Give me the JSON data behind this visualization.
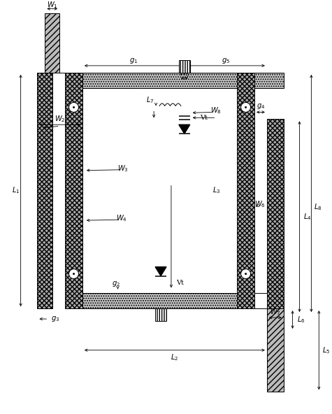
{
  "bg_color": "#ffffff",
  "fig_width": 4.75,
  "fig_height": 5.92,
  "dpi": 100,
  "gray_dot": "#cccccc",
  "gray_cross": "#aaaaaa",
  "gray_diag": "#bbbbbb"
}
